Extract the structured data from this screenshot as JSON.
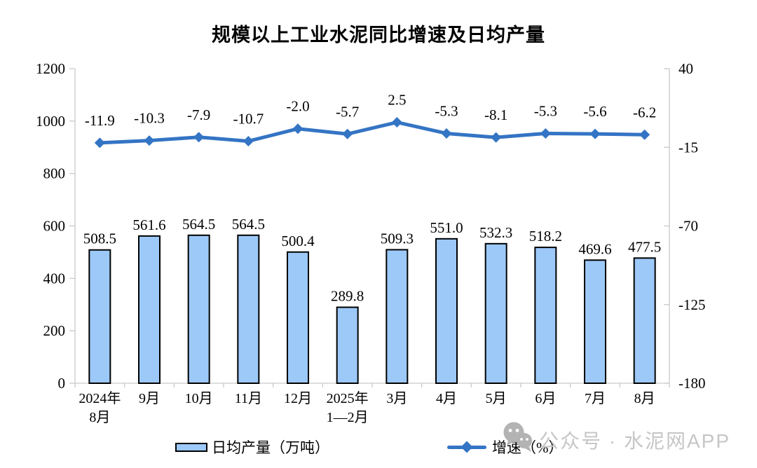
{
  "title": "规模以上工业水泥同比增速及日均产量",
  "watermark": {
    "text": "公众号 · 水泥网APP",
    "icon": "wechat-icon"
  },
  "colors": {
    "bar_fill": "#9CC9F8",
    "bar_border": "#000000",
    "line": "#3474C4",
    "axis": "#C9C9C9",
    "label": "#000000",
    "watermark_gray": "#B3B3B3"
  },
  "chart_data": {
    "type": "bar",
    "subtype": "combo-bar-line",
    "title": "规模以上工业水泥同比增速及日均产量",
    "categories": [
      "2024年\n8月",
      "9月",
      "10月",
      "11月",
      "12月",
      "2025年\n1—2月",
      "3月",
      "4月",
      "5月",
      "6月",
      "7月",
      "8月"
    ],
    "series": [
      {
        "name": "日均产量（万吨）",
        "type": "bar",
        "axis": "left",
        "values": [
          508.5,
          561.6,
          564.5,
          564.5,
          500.4,
          289.8,
          509.3,
          551.0,
          532.3,
          518.2,
          469.6,
          477.5
        ]
      },
      {
        "name": "增速（%）",
        "type": "line",
        "axis": "right",
        "values": [
          -11.9,
          -10.3,
          -7.9,
          -10.7,
          -2.0,
          -5.7,
          2.5,
          -5.3,
          -8.1,
          -5.3,
          -5.6,
          -6.2
        ]
      }
    ],
    "left_axis": {
      "min": 0,
      "max": 1200,
      "ticks": [
        0,
        200,
        400,
        600,
        800,
        1000,
        1200
      ]
    },
    "right_axis": {
      "min": -180,
      "max": 40,
      "ticks": [
        40,
        -15,
        -70,
        -125,
        -180
      ]
    },
    "grid": false,
    "data_labels": true,
    "legend_position": "bottom"
  }
}
